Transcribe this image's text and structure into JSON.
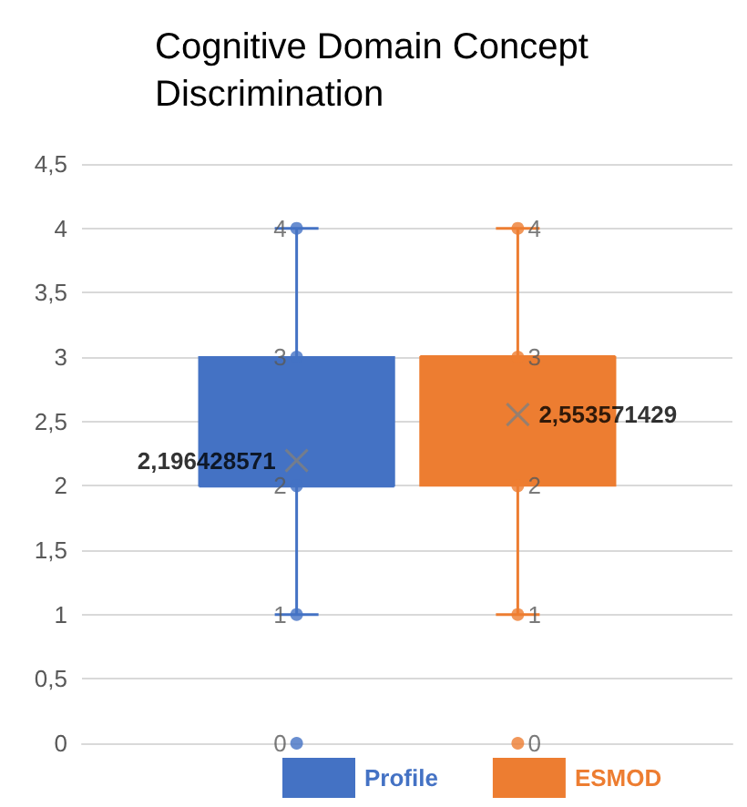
{
  "chart_data": {
    "type": "box",
    "title": "Cognitive Domain Concept Discrimination",
    "categories": [
      null
    ],
    "series": [
      {
        "name": "Profile",
        "color": "#4472c4",
        "boxes": [
          {
            "low": 1,
            "q1": 2,
            "median": 2,
            "q3": 3,
            "high": 4
          }
        ]
      },
      {
        "name": "ESMOD",
        "color": "#ed7d31",
        "boxes": [
          {
            "low": 1,
            "q1": 2,
            "median": 3,
            "q3": 3,
            "high": 4
          }
        ]
      },
      {
        "type": "scatter",
        "marker": "circle",
        "color": "#4472c4",
        "x": [
          null,
          null,
          null,
          null,
          null
        ],
        "values": [
          4,
          3,
          2,
          1,
          0
        ]
      },
      {
        "type": "scatter",
        "marker": "circle",
        "color": "#ed7d31",
        "x": [
          null,
          null,
          null,
          null,
          null
        ],
        "values": [
          4,
          3,
          2,
          1,
          0
        ]
      },
      {
        "type": "scatter",
        "marker": "cross",
        "color": "#7f7f7f",
        "x": [
          null
        ],
        "values": [
          2.196428571
        ],
        "value_labels": [
          "2,196428571"
        ]
      },
      {
        "type": "scatter",
        "marker": "cross",
        "color": "#7f7f7f",
        "x": [
          null
        ],
        "values": [
          2.553571429
        ],
        "value_labels": [
          "2,553571429"
        ]
      }
    ],
    "ylim": [
      0,
      4.5
    ],
    "yticks": [
      0,
      {
        "value": 0.5,
        "label": "0,5"
      },
      1,
      {
        "value": 1.5,
        "label": "1,5"
      },
      2,
      {
        "value": 2.5,
        "label": "2,5"
      },
      3,
      {
        "value": 3.5,
        "label": "3,5"
      },
      4,
      {
        "value": 4.5,
        "label": "4,5"
      }
    ],
    "grid": "y",
    "legend": "bottom",
    "data_labels": true
  }
}
